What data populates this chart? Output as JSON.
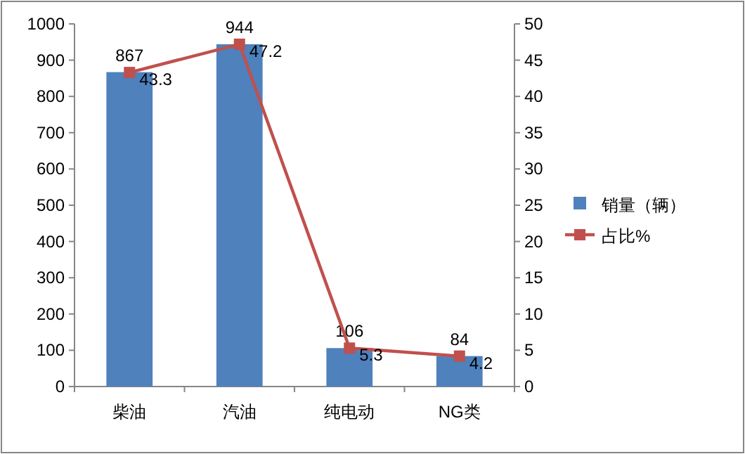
{
  "chart_data": {
    "type": "bar",
    "categories": [
      "柴油",
      "汽油",
      "纯电动",
      "NG类"
    ],
    "series": [
      {
        "name": "销量（辆）",
        "color": "#4f81bd",
        "values": [
          867,
          944,
          106,
          84
        ]
      },
      {
        "name": "占比%",
        "type": "line",
        "axis": "y2",
        "color": "#c0504d",
        "marker": "square",
        "values": [
          43.3,
          47.2,
          5.3,
          4.2
        ]
      }
    ],
    "ylim": [
      0,
      1000
    ],
    "yticks": [
      0,
      100,
      200,
      300,
      400,
      500,
      600,
      700,
      800,
      900,
      1000
    ],
    "y2lim": [
      0,
      50
    ],
    "y2ticks": [
      0,
      5,
      10,
      15,
      20,
      25,
      30,
      35,
      40,
      45,
      50
    ],
    "data_labels": true,
    "legend": "right",
    "grid": false
  }
}
